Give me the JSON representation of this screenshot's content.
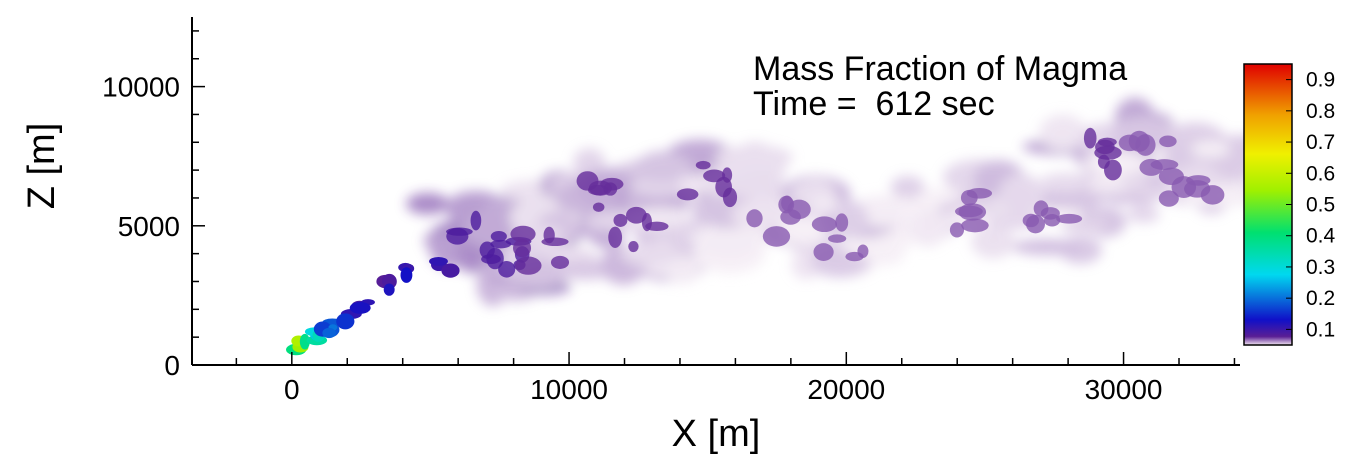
{
  "chart_data": {
    "type": "heatmap",
    "title": "Mass Fraction of Magma",
    "subtitle": "Time =  612 sec",
    "xlabel": "X [m]",
    "ylabel": "Z [m]",
    "xlim": [
      -3600,
      34200
    ],
    "ylim": [
      0,
      12500
    ],
    "x_ticks": [
      "0",
      "10000",
      "20000",
      "30000"
    ],
    "x_tick_values": [
      0,
      10000,
      20000,
      30000
    ],
    "y_ticks": [
      "0",
      "5000",
      "10000"
    ],
    "y_tick_values": [
      0,
      5000,
      10000
    ],
    "x_minor_step": 2000,
    "y_minor_step": 1000,
    "grid": false,
    "colorbar": {
      "variable": "Mass Fraction of Magma",
      "range": [
        0.05,
        0.95
      ],
      "ticks": [
        "0.9",
        "0.8",
        "0.7",
        "0.6",
        "0.5",
        "0.4",
        "0.3",
        "0.2",
        "0.1"
      ],
      "tick_values": [
        0.9,
        0.8,
        0.7,
        0.6,
        0.5,
        0.4,
        0.3,
        0.2,
        0.1
      ],
      "colors": [
        "#f0e4f0",
        "#5a1e94",
        "#1010c8",
        "#00d8f0",
        "#00e070",
        "#a0f000",
        "#f0f000",
        "#f0a000",
        "#e00000"
      ]
    },
    "plume": {
      "near_vent": [
        {
          "x": 400,
          "z": 700,
          "f": 0.45
        },
        {
          "x": 800,
          "z": 1050,
          "f": 0.3
        },
        {
          "x": 1300,
          "z": 1350,
          "f": 0.2
        },
        {
          "x": 2000,
          "z": 1750,
          "f": 0.12
        },
        {
          "x": 2600,
          "z": 2150,
          "f": 0.1
        },
        {
          "x": 3600,
          "z": 2900,
          "f": 0.1
        },
        {
          "x": 4300,
          "z": 3350,
          "f": 0.1
        },
        {
          "x": 5500,
          "z": 3550,
          "f": 0.09
        }
      ],
      "puffs": [
        {
          "x": 6800,
          "z": 4700,
          "f": 0.07
        },
        {
          "x": 7600,
          "z": 3800,
          "f": 0.07
        },
        {
          "x": 9000,
          "z": 4200,
          "f": 0.06
        },
        {
          "x": 10800,
          "z": 6000,
          "f": 0.06
        },
        {
          "x": 12500,
          "z": 4700,
          "f": 0.06
        },
        {
          "x": 15000,
          "z": 6500,
          "f": 0.06
        },
        {
          "x": 17500,
          "z": 5300,
          "f": 0.055
        },
        {
          "x": 20000,
          "z": 4500,
          "f": 0.055
        },
        {
          "x": 24000,
          "z": 5500,
          "f": 0.055
        },
        {
          "x": 27500,
          "z": 5200,
          "f": 0.055
        },
        {
          "x": 29500,
          "z": 7700,
          "f": 0.06
        },
        {
          "x": 31000,
          "z": 7500,
          "f": 0.055
        },
        {
          "x": 32500,
          "z": 6500,
          "f": 0.055
        }
      ]
    }
  }
}
